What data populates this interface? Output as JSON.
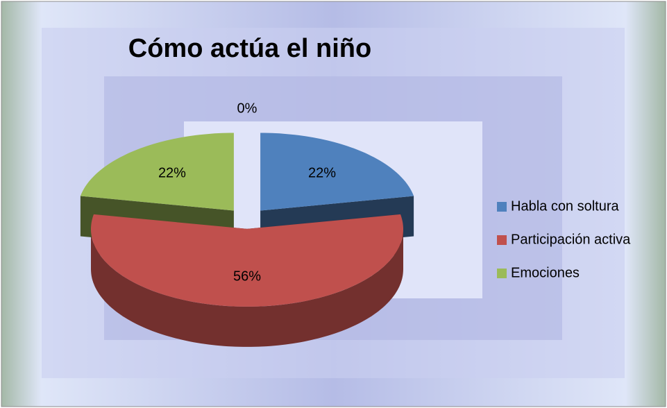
{
  "chart_data": {
    "type": "pie",
    "title": "Cómo actúa el niño",
    "categories": [
      "Habla con soltura",
      "Participación activa",
      "Emociones",
      null
    ],
    "values": [
      22,
      56,
      22,
      0
    ],
    "value_labels": [
      "22%",
      "56%",
      "22%",
      "0%"
    ],
    "colors": [
      "#4f81bd",
      "#c0504d",
      "#9bbb59",
      "#8064a2"
    ],
    "legend": "right"
  }
}
